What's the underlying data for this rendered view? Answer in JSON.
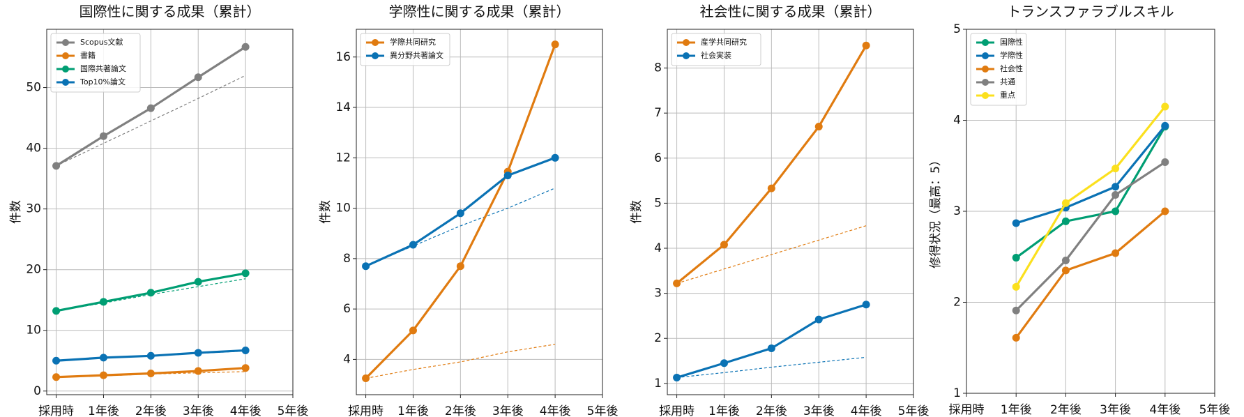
{
  "chart_data": [
    {
      "type": "line",
      "title": "国際性に関する成果（累計）",
      "y_label": "件数",
      "categories": [
        "採用時",
        "1年後",
        "2年後",
        "3年後",
        "4年後",
        "5年後"
      ],
      "xlim": [
        -0.2,
        5
      ],
      "ylim": [
        -0.6,
        59.6
      ],
      "yticks": [
        0,
        10,
        20,
        30,
        40,
        50
      ],
      "grid": true,
      "legend": "upper left",
      "series": [
        {
          "name": "Scopus文献",
          "color": "#808080",
          "values": [
            37.1,
            42,
            46.6,
            51.7,
            56.7,
            null
          ],
          "trend_values": [
            37.1,
            40.8,
            44.5,
            48.2,
            52,
            null
          ]
        },
        {
          "name": "書籍",
          "color": "#E07B10",
          "values": [
            2.3,
            2.6,
            2.9,
            3.3,
            3.8,
            null
          ],
          "trend_values": [
            2.3,
            2.5,
            2.8,
            3,
            3.2,
            null
          ]
        },
        {
          "name": "国際共著論文",
          "color": "#009E73",
          "values": [
            13.2,
            14.7,
            16.2,
            18,
            19.4,
            null
          ],
          "trend_values": [
            13.2,
            14.5,
            15.9,
            17.2,
            18.5,
            null
          ]
        },
        {
          "name": "Top10%論文",
          "color": "#0A72B4",
          "values": [
            5,
            5.5,
            5.8,
            6.3,
            6.7,
            null
          ],
          "trend_values": [
            5,
            5.4,
            5.8,
            6.2,
            6.6,
            null
          ]
        }
      ]
    },
    {
      "type": "line",
      "title": "学際性に関する成果（累計）",
      "y_label": "件数",
      "categories": [
        "採用時",
        "1年後",
        "2年後",
        "3年後",
        "4年後",
        "5年後"
      ],
      "xlim": [
        -0.2,
        5
      ],
      "ylim": [
        2.6,
        17.1
      ],
      "yticks": [
        4,
        6,
        8,
        10,
        12,
        14,
        16
      ],
      "grid": true,
      "legend": "upper left",
      "series": [
        {
          "name": "学際共同研究",
          "color": "#E07B10",
          "values": [
            3.25,
            5.15,
            7.7,
            11.45,
            16.5,
            null
          ],
          "trend_values": [
            3.25,
            3.6,
            3.9,
            4.3,
            4.6,
            null
          ]
        },
        {
          "name": "異分野共著論文",
          "color": "#0A72B4",
          "values": [
            7.7,
            8.55,
            9.8,
            11.3,
            12,
            null
          ],
          "trend_values": [
            7.7,
            8.5,
            9.3,
            10,
            10.8,
            null
          ]
        }
      ]
    },
    {
      "type": "line",
      "title": "社会性に関する成果（累計）",
      "y_label": "件数",
      "categories": [
        "採用時",
        "1年後",
        "2年後",
        "3年後",
        "4年後",
        "5年後"
      ],
      "xlim": [
        -0.2,
        5
      ],
      "ylim": [
        0.75,
        8.86
      ],
      "yticks": [
        1,
        2,
        3,
        4,
        5,
        6,
        7,
        8
      ],
      "grid": true,
      "legend": "upper left",
      "series": [
        {
          "name": "産学共同研究",
          "color": "#E07B10",
          "values": [
            3.22,
            4.08,
            5.33,
            6.7,
            8.5,
            null
          ],
          "trend_values": [
            3.22,
            3.54,
            3.86,
            4.18,
            4.5,
            null
          ]
        },
        {
          "name": "社会実装",
          "color": "#0A72B4",
          "values": [
            1.13,
            1.45,
            1.78,
            2.42,
            2.75,
            null
          ],
          "trend_values": [
            1.13,
            1.24,
            1.36,
            1.47,
            1.58,
            null
          ]
        }
      ]
    },
    {
      "type": "line",
      "title": "トランスファラブルスキル",
      "y_label": "修得状況（最高：5）",
      "categories": [
        "採用時",
        "1年後",
        "2年後",
        "3年後",
        "4年後",
        "5年後"
      ],
      "xlim": [
        0,
        5
      ],
      "ylim": [
        1,
        5
      ],
      "yticks": [
        1,
        2,
        3,
        4,
        5
      ],
      "grid": true,
      "legend": "upper left",
      "series": [
        {
          "name": "国際性",
          "color": "#009E73",
          "values": [
            null,
            2.49,
            2.89,
            3.0,
            3.93,
            null
          ]
        },
        {
          "name": "学際性",
          "color": "#0A72B4",
          "values": [
            null,
            2.87,
            3.04,
            3.27,
            3.94,
            null
          ]
        },
        {
          "name": "社会性",
          "color": "#E07B10",
          "values": [
            null,
            1.61,
            2.35,
            2.54,
            3.0,
            null
          ]
        },
        {
          "name": "共通",
          "color": "#808080",
          "values": [
            null,
            1.91,
            2.46,
            3.18,
            3.54,
            null
          ]
        },
        {
          "name": "重点",
          "color": "#FBE01E",
          "values": [
            null,
            2.17,
            3.09,
            3.47,
            4.15,
            null
          ]
        }
      ]
    }
  ]
}
